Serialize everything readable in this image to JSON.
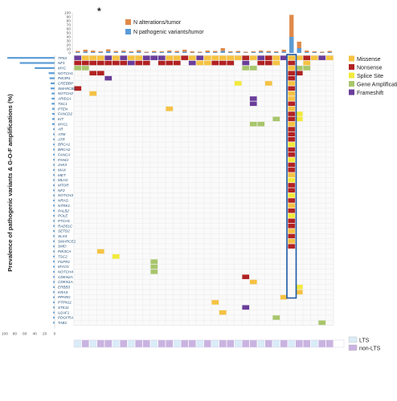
{
  "chart_data": {
    "type": "heatmap",
    "y_axis_title": "Prevalence of pathogenic variants & G-O-F amplifications (%)",
    "top_marker": "*",
    "top_legend": [
      {
        "label": "N alterations/tumor",
        "color": "#e0894a"
      },
      {
        "label": "N pathogenic variants/tumor",
        "color": "#5b9bd5"
      }
    ],
    "top_ticks": [
      "100",
      "90",
      "80",
      "70",
      "60",
      "50",
      "40",
      "30",
      "20",
      "10",
      "0"
    ],
    "prevalence_ticks": [
      "100",
      "80",
      "60",
      "40",
      "20",
      "0"
    ],
    "alteration_legend": [
      {
        "label": "Missense",
        "color": "#f5c242"
      },
      {
        "label": "Nonsense",
        "color": "#b22222"
      },
      {
        "label": "Splice Site",
        "color": "#f2ea3a"
      },
      {
        "label": "Gene Amplification",
        "color": "#a8c66c"
      },
      {
        "label": "Frameshift",
        "color": "#6a3d9a"
      }
    ],
    "group_legend": [
      {
        "label": "LTS",
        "color": "#d9ecf7"
      },
      {
        "label": "non-LTS",
        "color": "#c9b3e0"
      }
    ],
    "genes": [
      "TP53",
      "NF1",
      "MYC",
      "NOTCH1",
      "PIK3R1",
      "CREBBP",
      "SMARCB4",
      "NOTCH2",
      "ARID1A",
      "TSC1",
      "PTEN",
      "FANCD2",
      "KIT",
      "MYCL",
      "AR",
      "ATM",
      "ATR",
      "BRCA1",
      "BRCA2",
      "FANCA",
      "FANCI",
      "JAK3",
      "MAX",
      "MET",
      "MLH1",
      "MTOR",
      "NF2",
      "NOTCH3",
      "NRAS",
      "NTRK1",
      "PALB2",
      "POLE",
      "PTCH1",
      "RAD51C",
      "SETD2",
      "SLX4",
      "SMARCE1",
      "SMO",
      "PIK3CA",
      "TSC2",
      "FGFR1",
      "MYCN",
      "NOTCH4",
      "CDKN2A",
      "CDKN1A",
      "ERBB3",
      "KRAS",
      "PPARG",
      "PTPN11",
      "STK11",
      "U2AF1",
      "PDGFRA",
      "TAB1"
    ],
    "prevalence_pct": [
      95,
      70,
      40,
      12,
      10,
      8,
      8,
      6,
      6,
      6,
      5,
      5,
      5,
      5,
      3,
      3,
      3,
      3,
      3,
      3,
      3,
      3,
      3,
      3,
      3,
      3,
      3,
      3,
      3,
      3,
      3,
      3,
      3,
      3,
      3,
      3,
      3,
      3,
      3,
      3,
      3,
      3,
      3,
      3,
      3,
      3,
      3,
      3,
      3,
      3,
      3,
      3,
      3
    ],
    "n_samples": 34,
    "highlight_sample_index": 28,
    "n_alterations_per_tumor": [
      5,
      8,
      6,
      4,
      9,
      5,
      6,
      4,
      7,
      3,
      5,
      4,
      6,
      5,
      8,
      4,
      3,
      6,
      5,
      12,
      4,
      5,
      3,
      4,
      6,
      5,
      4,
      8,
      95,
      28,
      6,
      4,
      3,
      5
    ],
    "n_pathogenic_per_tumor": [
      2,
      3,
      2,
      2,
      4,
      2,
      3,
      2,
      3,
      1,
      2,
      2,
      3,
      2,
      3,
      1,
      1,
      2,
      2,
      5,
      2,
      2,
      1,
      2,
      3,
      2,
      2,
      3,
      40,
      12,
      2,
      2,
      1,
      2
    ],
    "group": [
      "LTS",
      "non-LTS",
      "LTS",
      "non-LTS",
      "non-LTS",
      "LTS",
      "non-LTS",
      "LTS",
      "non-LTS",
      "non-LTS",
      "LTS",
      "non-LTS",
      "non-LTS",
      "LTS",
      "non-LTS",
      "non-LTS",
      "LTS",
      "non-LTS",
      "LTS",
      "non-LTS",
      "non-LTS",
      "LTS",
      "non-LTS",
      "non-LTS",
      "LTS",
      "non-LTS",
      "LTS",
      "non-LTS",
      "LTS",
      "non-LTS",
      "non-LTS",
      "LTS",
      "non-LTS",
      "non-LTS"
    ],
    "cells": [
      {
        "g": 0,
        "s": 0,
        "t": "F"
      },
      {
        "g": 0,
        "s": 1,
        "t": "M"
      },
      {
        "g": 0,
        "s": 2,
        "t": "M"
      },
      {
        "g": 0,
        "s": 3,
        "t": "M"
      },
      {
        "g": 0,
        "s": 4,
        "t": "F"
      },
      {
        "g": 0,
        "s": 5,
        "t": "M"
      },
      {
        "g": 0,
        "s": 6,
        "t": "F"
      },
      {
        "g": 0,
        "s": 7,
        "t": "M"
      },
      {
        "g": 0,
        "s": 8,
        "t": "M"
      },
      {
        "g": 0,
        "s": 9,
        "t": "F"
      },
      {
        "g": 0,
        "s": 10,
        "t": "F"
      },
      {
        "g": 0,
        "s": 11,
        "t": "F"
      },
      {
        "g": 0,
        "s": 12,
        "t": "M"
      },
      {
        "g": 0,
        "s": 13,
        "t": "M"
      },
      {
        "g": 0,
        "s": 14,
        "t": "N"
      },
      {
        "g": 0,
        "s": 15,
        "t": "M"
      },
      {
        "g": 0,
        "s": 16,
        "t": "F"
      },
      {
        "g": 0,
        "s": 17,
        "t": "M"
      },
      {
        "g": 0,
        "s": 18,
        "t": "M"
      },
      {
        "g": 0,
        "s": 19,
        "t": "M"
      },
      {
        "g": 0,
        "s": 20,
        "t": "M"
      },
      {
        "g": 0,
        "s": 21,
        "t": "M"
      },
      {
        "g": 0,
        "s": 22,
        "t": "N"
      },
      {
        "g": 0,
        "s": 23,
        "t": "M"
      },
      {
        "g": 0,
        "s": 24,
        "t": "F"
      },
      {
        "g": 0,
        "s": 25,
        "t": "N"
      },
      {
        "g": 0,
        "s": 26,
        "t": "M"
      },
      {
        "g": 0,
        "s": 27,
        "t": "F"
      },
      {
        "g": 0,
        "s": 28,
        "t": "M"
      },
      {
        "g": 0,
        "s": 29,
        "t": "M"
      },
      {
        "g": 0,
        "s": 30,
        "t": "N"
      },
      {
        "g": 0,
        "s": 31,
        "t": "M"
      },
      {
        "g": 0,
        "s": 32,
        "t": "F"
      },
      {
        "g": 0,
        "s": 33,
        "t": "M"
      },
      {
        "g": 1,
        "s": 0,
        "t": "N"
      },
      {
        "g": 1,
        "s": 1,
        "t": "N"
      },
      {
        "g": 1,
        "s": 2,
        "t": "N"
      },
      {
        "g": 1,
        "s": 3,
        "t": "N"
      },
      {
        "g": 1,
        "s": 4,
        "t": "N"
      },
      {
        "g": 1,
        "s": 5,
        "t": "N"
      },
      {
        "g": 1,
        "s": 6,
        "t": "N"
      },
      {
        "g": 1,
        "s": 7,
        "t": "F"
      },
      {
        "g": 1,
        "s": 8,
        "t": "N"
      },
      {
        "g": 1,
        "s": 9,
        "t": "N"
      },
      {
        "g": 1,
        "s": 11,
        "t": "N"
      },
      {
        "g": 1,
        "s": 12,
        "t": "N"
      },
      {
        "g": 1,
        "s": 13,
        "t": "N"
      },
      {
        "g": 1,
        "s": 15,
        "t": "F"
      },
      {
        "g": 1,
        "s": 16,
        "t": "M"
      },
      {
        "g": 1,
        "s": 17,
        "t": "M"
      },
      {
        "g": 1,
        "s": 18,
        "t": "N"
      },
      {
        "g": 1,
        "s": 19,
        "t": "N"
      },
      {
        "g": 1,
        "s": 20,
        "t": "N"
      },
      {
        "g": 1,
        "s": 22,
        "t": "F"
      },
      {
        "g": 1,
        "s": 24,
        "t": "N"
      },
      {
        "g": 1,
        "s": 25,
        "t": "N"
      },
      {
        "g": 1,
        "s": 26,
        "t": "M"
      },
      {
        "g": 1,
        "s": 28,
        "t": "N"
      },
      {
        "g": 1,
        "s": 30,
        "t": "M"
      },
      {
        "g": 2,
        "s": 0,
        "t": "A"
      },
      {
        "g": 2,
        "s": 1,
        "t": "A"
      },
      {
        "g": 2,
        "s": 22,
        "t": "A"
      },
      {
        "g": 2,
        "s": 23,
        "t": "A"
      },
      {
        "g": 2,
        "s": 28,
        "t": "M"
      },
      {
        "g": 2,
        "s": 29,
        "t": "A"
      },
      {
        "g": 2,
        "s": 30,
        "t": "A"
      },
      {
        "g": 3,
        "s": 2,
        "t": "N"
      },
      {
        "g": 3,
        "s": 3,
        "t": "N"
      },
      {
        "g": 3,
        "s": 28,
        "t": "N"
      },
      {
        "g": 3,
        "s": 29,
        "t": "N"
      },
      {
        "g": 4,
        "s": 4,
        "t": "F"
      },
      {
        "g": 4,
        "s": 28,
        "t": "N"
      },
      {
        "g": 5,
        "s": 21,
        "t": "S"
      },
      {
        "g": 5,
        "s": 25,
        "t": "M"
      },
      {
        "g": 5,
        "s": 28,
        "t": "M"
      },
      {
        "g": 6,
        "s": 0,
        "t": "N"
      },
      {
        "g": 6,
        "s": 28,
        "t": "N"
      },
      {
        "g": 7,
        "s": 2,
        "t": "M"
      },
      {
        "g": 7,
        "s": 28,
        "t": "M"
      },
      {
        "g": 8,
        "s": 23,
        "t": "F"
      },
      {
        "g": 8,
        "s": 28,
        "t": "M"
      },
      {
        "g": 9,
        "s": 23,
        "t": "F"
      },
      {
        "g": 9,
        "s": 28,
        "t": "N"
      },
      {
        "g": 10,
        "s": 12,
        "t": "M"
      },
      {
        "g": 10,
        "s": 28,
        "t": "M"
      },
      {
        "g": 11,
        "s": 28,
        "t": "N"
      },
      {
        "g": 11,
        "s": 29,
        "t": "S"
      },
      {
        "g": 12,
        "s": 26,
        "t": "A"
      },
      {
        "g": 12,
        "s": 28,
        "t": "N"
      },
      {
        "g": 12,
        "s": 29,
        "t": "S"
      },
      {
        "g": 13,
        "s": 23,
        "t": "A"
      },
      {
        "g": 13,
        "s": 24,
        "t": "A"
      },
      {
        "g": 13,
        "s": 28,
        "t": "M"
      },
      {
        "g": 14,
        "s": 28,
        "t": "N"
      },
      {
        "g": 15,
        "s": 28,
        "t": "N"
      },
      {
        "g": 16,
        "s": 28,
        "t": "N"
      },
      {
        "g": 17,
        "s": 28,
        "t": "S"
      },
      {
        "g": 18,
        "s": 28,
        "t": "N"
      },
      {
        "g": 19,
        "s": 28,
        "t": "N"
      },
      {
        "g": 20,
        "s": 28,
        "t": "S"
      },
      {
        "g": 21,
        "s": 28,
        "t": "N"
      },
      {
        "g": 22,
        "s": 28,
        "t": "N"
      },
      {
        "g": 23,
        "s": 28,
        "t": "M"
      },
      {
        "g": 24,
        "s": 28,
        "t": "S"
      },
      {
        "g": 25,
        "s": 28,
        "t": "N"
      },
      {
        "g": 26,
        "s": 28,
        "t": "N"
      },
      {
        "g": 27,
        "s": 28,
        "t": "S"
      },
      {
        "g": 28,
        "s": 28,
        "t": "N"
      },
      {
        "g": 29,
        "s": 28,
        "t": "M"
      },
      {
        "g": 30,
        "s": 28,
        "t": "N"
      },
      {
        "g": 31,
        "s": 28,
        "t": "S"
      },
      {
        "g": 32,
        "s": 28,
        "t": "N"
      },
      {
        "g": 33,
        "s": 28,
        "t": "N"
      },
      {
        "g": 34,
        "s": 28,
        "t": "M"
      },
      {
        "g": 35,
        "s": 28,
        "t": "N"
      },
      {
        "g": 36,
        "s": 28,
        "t": "M"
      },
      {
        "g": 37,
        "s": 28,
        "t": "N"
      },
      {
        "g": 38,
        "s": 3,
        "t": "M"
      },
      {
        "g": 39,
        "s": 5,
        "t": "S"
      },
      {
        "g": 40,
        "s": 10,
        "t": "A"
      },
      {
        "g": 41,
        "s": 10,
        "t": "A"
      },
      {
        "g": 42,
        "s": 10,
        "t": "A"
      },
      {
        "g": 43,
        "s": 22,
        "t": "N"
      },
      {
        "g": 44,
        "s": 23,
        "t": "M"
      },
      {
        "g": 45,
        "s": 29,
        "t": "S"
      },
      {
        "g": 46,
        "s": 29,
        "t": "M"
      },
      {
        "g": 47,
        "s": 27,
        "t": "M"
      },
      {
        "g": 48,
        "s": 18,
        "t": "M"
      },
      {
        "g": 49,
        "s": 22,
        "t": "F"
      },
      {
        "g": 50,
        "s": 19,
        "t": "M"
      },
      {
        "g": 51,
        "s": 26,
        "t": "A"
      },
      {
        "g": 52,
        "s": 32,
        "t": "A"
      }
    ]
  }
}
